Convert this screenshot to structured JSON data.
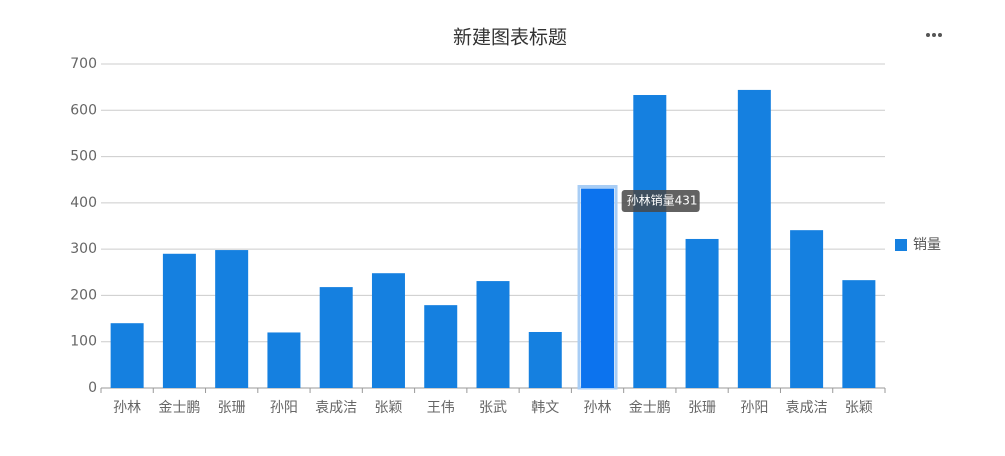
{
  "chart_data": {
    "type": "bar",
    "title": "新建图表标题",
    "categories": [
      "孙林",
      "金士鹏",
      "张珊",
      "孙阳",
      "袁成洁",
      "张颖",
      "王伟",
      "张武",
      "韩文",
      "孙林",
      "金士鹏",
      "张珊",
      "孙阳",
      "袁成洁",
      "张颖"
    ],
    "series": [
      {
        "name": "销量",
        "color": "#1580e0",
        "values": [
          140,
          290,
          298,
          120,
          218,
          248,
          179,
          231,
          121,
          431,
          633,
          322,
          644,
          341,
          233
        ]
      }
    ],
    "ylim": [
      0,
      700
    ],
    "yticks": [
      0,
      100,
      200,
      300,
      400,
      500,
      600,
      700
    ],
    "grid": true,
    "legend": "right",
    "tooltip": "孙林销量431"
  }
}
